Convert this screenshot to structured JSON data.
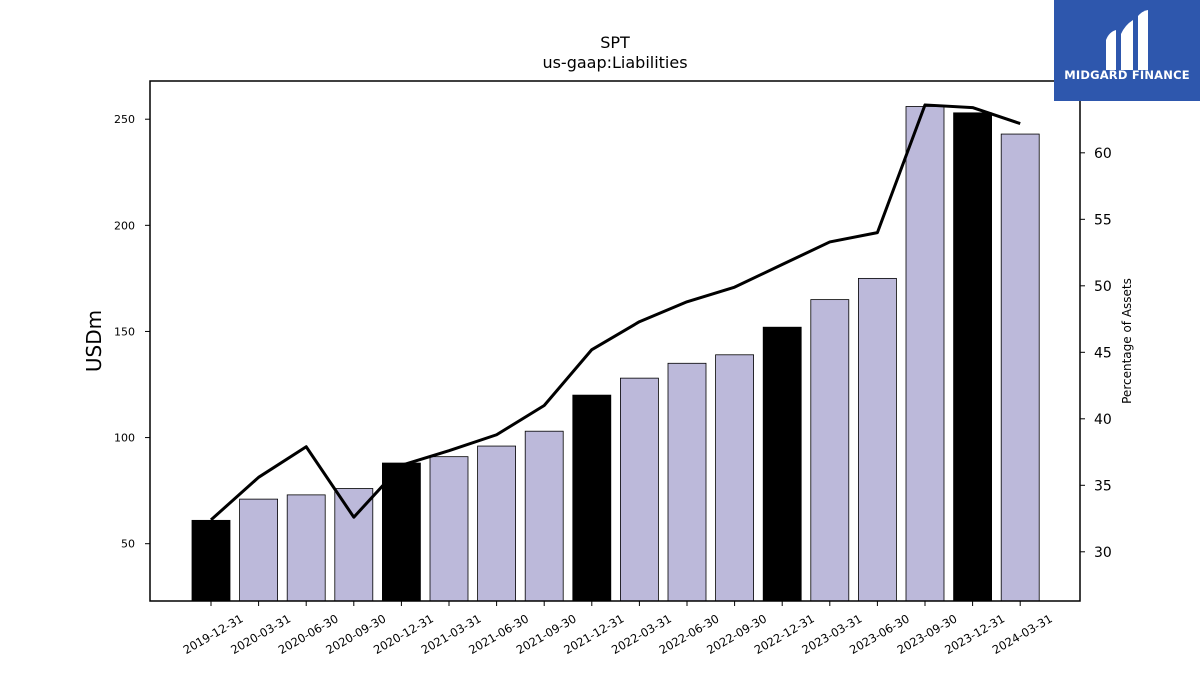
{
  "chart_data": {
    "type": "bar",
    "title": "SPT",
    "subtitle": "us-gaap:Liabilities",
    "ylabel": "USDm",
    "y2label": "Percentage of Assets",
    "categories": [
      "2019-12-31",
      "2020-03-31",
      "2020-06-30",
      "2020-09-30",
      "2020-12-31",
      "2021-03-31",
      "2021-06-30",
      "2021-09-30",
      "2021-12-31",
      "2022-03-31",
      "2022-06-30",
      "2022-09-30",
      "2022-12-31",
      "2023-03-31",
      "2023-06-30",
      "2023-09-30",
      "2023-12-31",
      "2024-03-31"
    ],
    "series": [
      {
        "values": [
          61,
          71,
          73,
          76,
          88,
          91,
          96,
          103,
          120,
          128,
          135,
          139,
          152,
          165,
          175,
          256,
          253,
          243
        ],
        "highlight": [
          true,
          false,
          false,
          false,
          true,
          false,
          false,
          false,
          true,
          false,
          false,
          false,
          true,
          false,
          false,
          false,
          true,
          false
        ],
        "color": "#bcb9da",
        "highlight_color": "#000000",
        "axis": "left"
      },
      {
        "type": "line",
        "values": [
          32.4,
          35.6,
          37.9,
          32.6,
          36.5,
          37.6,
          38.8,
          41.0,
          45.2,
          47.3,
          48.8,
          49.9,
          51.6,
          53.3,
          54.0,
          63.6,
          63.4,
          62.2
        ],
        "color": "#000000",
        "axis": "right"
      }
    ],
    "ylim": [
      23,
      268
    ],
    "y2lim": [
      26.3,
      65.4
    ],
    "yticks": [
      50,
      100,
      150,
      200,
      250
    ],
    "y2ticks": [
      30,
      35,
      40,
      45,
      50,
      55,
      60
    ],
    "grid": false,
    "legend": "none"
  },
  "logo": {
    "text": "MIDGARD FINANCE",
    "background": "#2e57ad"
  }
}
